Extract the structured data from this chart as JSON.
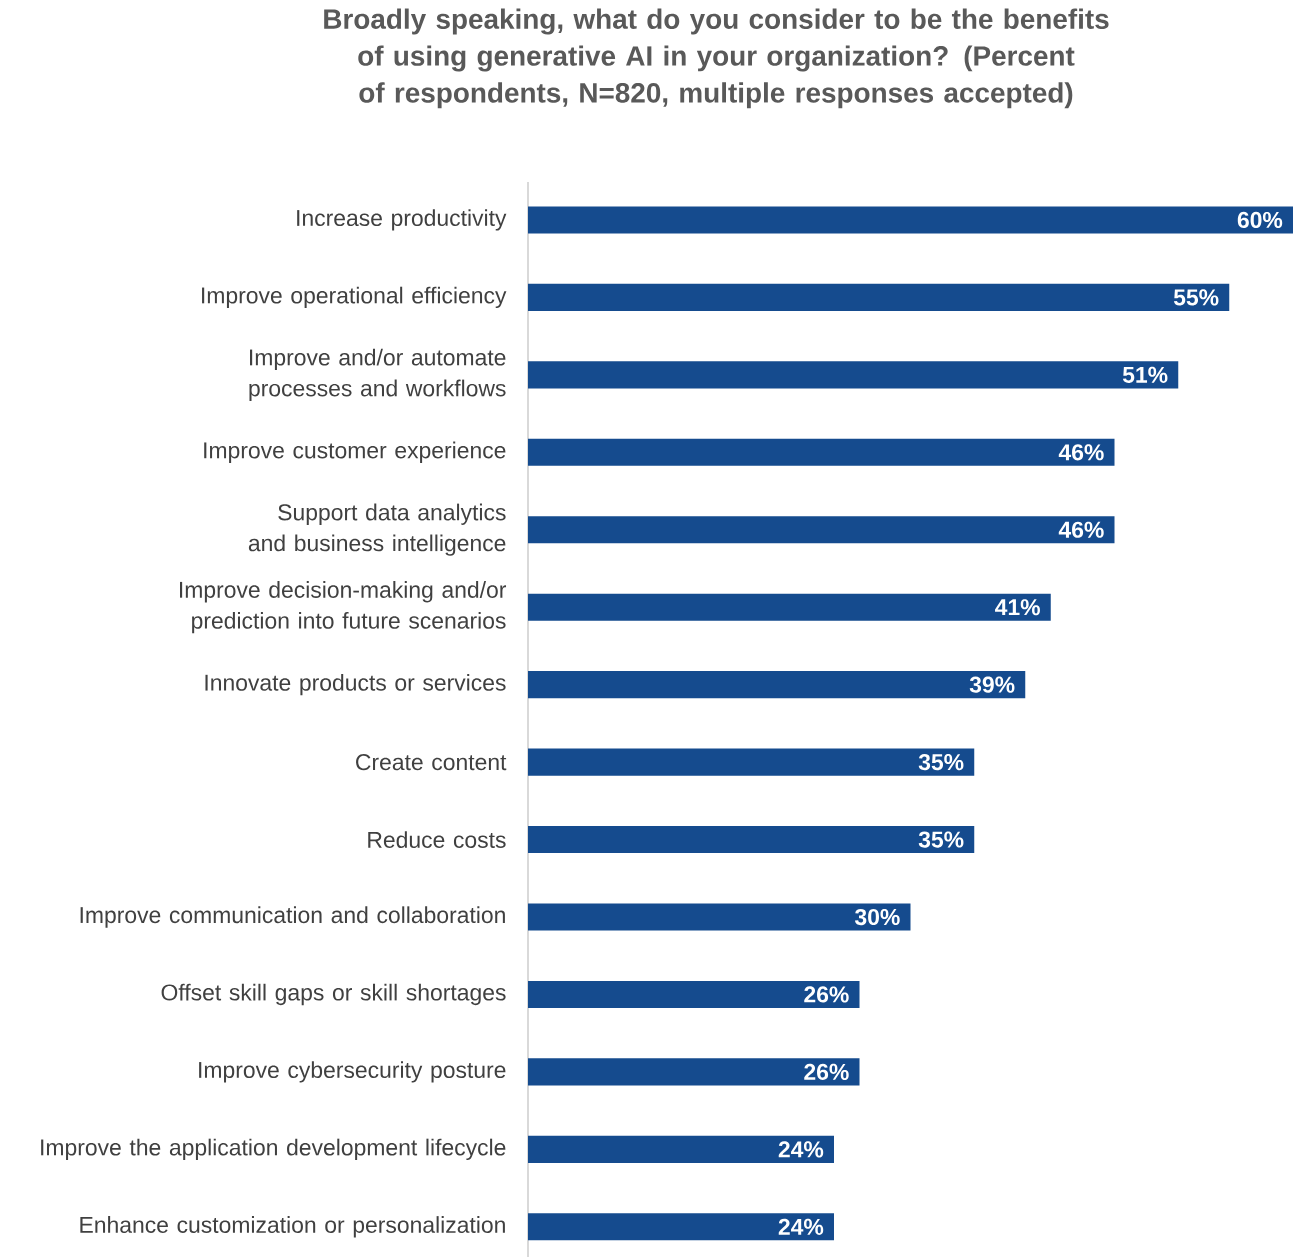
{
  "chart_data": {
    "type": "bar",
    "orientation": "horizontal",
    "title": "Broadly speaking, what do you consider to be the benefits of using generative AI in your organization? (Percent of respondents, N=820, multiple responses accepted)",
    "categories": [
      "Increase productivity",
      "Improve operational efficiency",
      "Improve and/or automate processes and workflows",
      "Improve customer experience",
      "Support data analytics and business intelligence",
      "Improve decision-making and/or prediction into future scenarios",
      "Innovate products or services",
      "Create content",
      "Reduce costs",
      "Improve communication and collaboration",
      "Offset skill gaps or skill shortages",
      "Improve cybersecurity posture",
      "Improve the application development lifecycle",
      "Enhance customization or personalization"
    ],
    "values": [
      60,
      55,
      51,
      46,
      46,
      41,
      39,
      35,
      35,
      30,
      26,
      26,
      24,
      24
    ],
    "value_labels": [
      "60%",
      "55%",
      "51%",
      "46%",
      "46%",
      "41%",
      "39%",
      "35%",
      "35%",
      "30%",
      "26%",
      "26%",
      "24%",
      "24%"
    ],
    "color": "#154b8e",
    "xlim": [
      0,
      60
    ],
    "tick_labels": "y"
  }
}
